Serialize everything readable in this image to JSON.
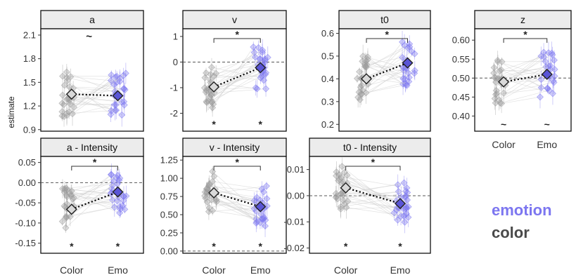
{
  "figure": {
    "ylabel": "estimate",
    "legend": {
      "emotion": "emotion",
      "color": "color"
    },
    "colors": {
      "emotion": "#7c76f0",
      "color": "#9a9a9a",
      "emotion_mean": "#5a55d6",
      "color_mean": "#d9d9d9"
    }
  },
  "chart_data": [
    {
      "title": "a",
      "type": "scatter",
      "categories": [
        "Color",
        "Emo"
      ],
      "means": [
        1.35,
        1.33
      ],
      "ylim": [
        0.88,
        2.18
      ],
      "yticks": [
        "2.1",
        "1.8",
        "1.5",
        "1.2",
        "0.9"
      ],
      "ytick_values": [
        2.1,
        1.8,
        1.5,
        1.2,
        0.9
      ],
      "reference_line": null,
      "bracket": "~",
      "below_marks": [
        "",
        ""
      ],
      "show_x_labels": false
    },
    {
      "title": "v",
      "type": "scatter",
      "categories": [
        "Color",
        "Emo"
      ],
      "means": [
        -0.97,
        -0.22
      ],
      "ylim": [
        -2.7,
        1.3
      ],
      "yticks": [
        "1",
        "0",
        "-1",
        "-2"
      ],
      "ytick_values": [
        1,
        0,
        -1,
        -2
      ],
      "reference_line": 0,
      "bracket": "*",
      "below_marks": [
        "*",
        "*"
      ],
      "show_x_labels": false
    },
    {
      "title": "t0",
      "type": "scatter",
      "categories": [
        "Color",
        "Emo"
      ],
      "means": [
        0.4,
        0.47
      ],
      "ylim": [
        0.17,
        0.62
      ],
      "yticks": [
        "0.6",
        "0.5",
        "0.4",
        "0.3",
        "0.2"
      ],
      "ytick_values": [
        0.6,
        0.5,
        0.4,
        0.3,
        0.2
      ],
      "reference_line": null,
      "bracket": "*",
      "below_marks": [
        "",
        ""
      ],
      "show_x_labels": false
    },
    {
      "title": "z",
      "type": "scatter",
      "categories": [
        "Color",
        "Emo"
      ],
      "means": [
        0.49,
        0.51
      ],
      "ylim": [
        0.36,
        0.63
      ],
      "yticks": [
        "0.60",
        "0.55",
        "0.50",
        "0.45",
        "0.40"
      ],
      "ytick_values": [
        0.6,
        0.55,
        0.5,
        0.45,
        0.4
      ],
      "reference_line": 0.5,
      "bracket": "*",
      "below_marks": [
        "~",
        "~"
      ],
      "show_x_labels": true
    },
    {
      "title": "a - Intensity",
      "type": "scatter",
      "categories": [
        "Color",
        "Emo"
      ],
      "means": [
        -0.066,
        -0.023
      ],
      "ylim": [
        -0.175,
        0.065
      ],
      "yticks": [
        "0.05",
        "0.00",
        "-0.05",
        "-0.10",
        "-0.15"
      ],
      "ytick_values": [
        0.05,
        0,
        -0.05,
        -0.1,
        -0.15
      ],
      "reference_line": 0,
      "bracket": "*",
      "below_marks": [
        "*",
        "*"
      ],
      "show_x_labels": true
    },
    {
      "title": "v - Intensity",
      "type": "scatter",
      "categories": [
        "Color",
        "Emo"
      ],
      "means": [
        0.8,
        0.61
      ],
      "ylim": [
        -0.03,
        1.3
      ],
      "yticks": [
        "1.25",
        "1.00",
        "0.75",
        "0.50",
        "0.25",
        "0.00"
      ],
      "ytick_values": [
        1.25,
        1,
        0.75,
        0.5,
        0.25,
        0
      ],
      "reference_line": 0,
      "bracket": "*",
      "below_marks": [
        "*",
        "*"
      ],
      "show_x_labels": true
    },
    {
      "title": "t0 - Intensity",
      "type": "scatter",
      "categories": [
        "Color",
        "Emo"
      ],
      "means": [
        0.003,
        -0.003
      ],
      "ylim": [
        -0.022,
        0.015
      ],
      "yticks": [
        "0.01",
        "0.00",
        "-0.01",
        "-0.02"
      ],
      "ytick_values": [
        0.01,
        0,
        -0.01,
        -0.02
      ],
      "reference_line": 0,
      "bracket": "*",
      "below_marks": [
        "*",
        "*"
      ],
      "show_x_labels": true
    }
  ]
}
